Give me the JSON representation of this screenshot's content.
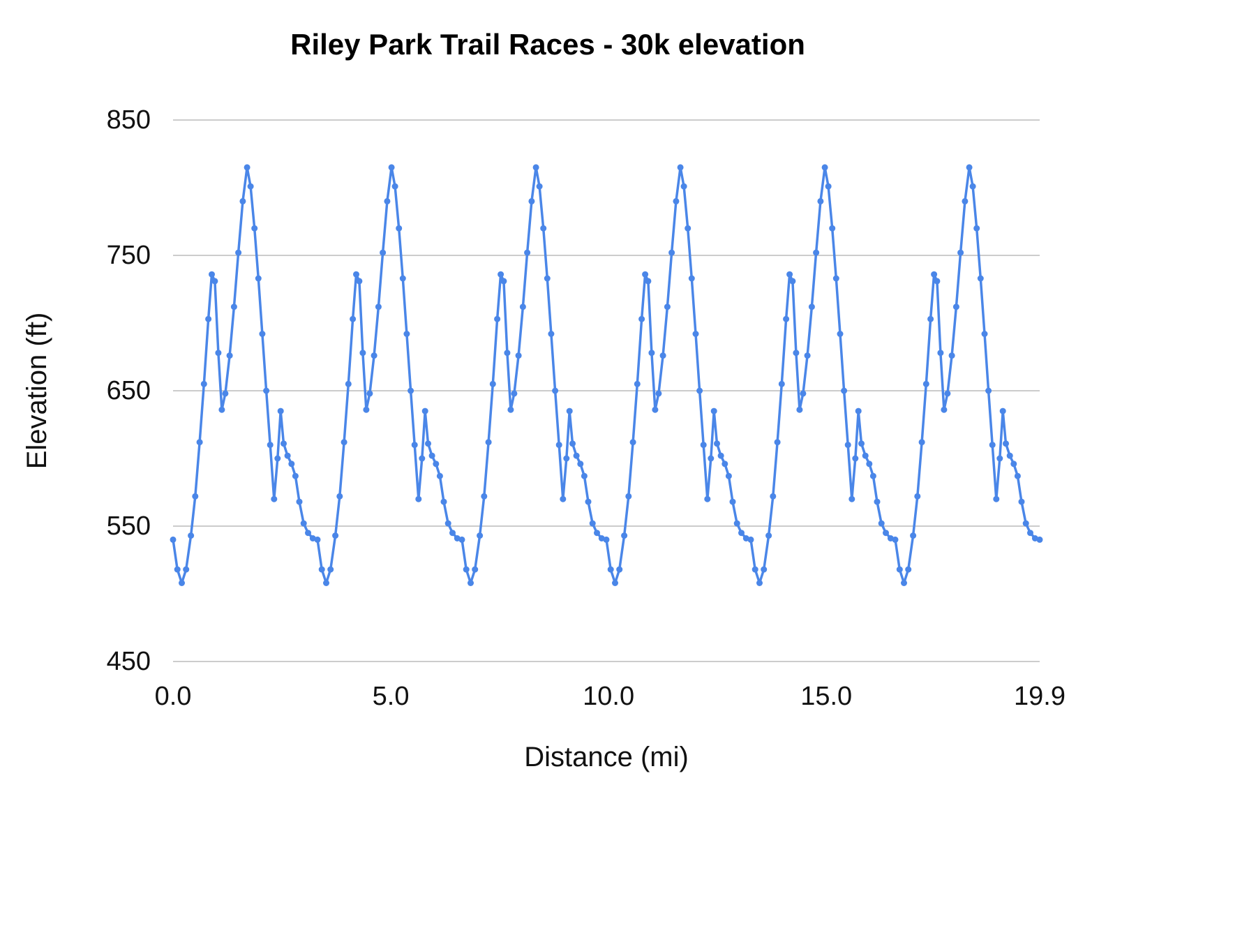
{
  "chart": {
    "title": "Riley Park Trail Races - 30k elevation",
    "colors": {
      "line": "#4a86e8",
      "marker": "#4a86e8",
      "grid": "#cccccc",
      "text": "#111111",
      "title": "#000000",
      "background": "#ffffff"
    }
  },
  "chart_data": {
    "type": "line",
    "title": "Riley Park Trail Races - 30k elevation",
    "xlabel": "Distance (mi)",
    "ylabel": "Elevation (ft)",
    "xlim": [
      0,
      19.9
    ],
    "ylim": [
      450,
      850
    ],
    "grid": "horizontal",
    "legend": "none",
    "markers": true,
    "y_ticks": [
      {
        "v": 450,
        "label": "450"
      },
      {
        "v": 550,
        "label": "550"
      },
      {
        "v": 650,
        "label": "650"
      },
      {
        "v": 750,
        "label": "750"
      },
      {
        "v": 850,
        "label": "850"
      }
    ],
    "x_ticks": [
      {
        "v": 0,
        "label": "0.0"
      },
      {
        "v": 5,
        "label": "5.0"
      },
      {
        "v": 10,
        "label": "10.0"
      },
      {
        "v": 15,
        "label": "15.0"
      },
      {
        "v": 19.9,
        "label": "19.9"
      }
    ],
    "laps": 6,
    "lap_length_mi": 3.3167,
    "lap_profile": {
      "offsets_mi": [
        0.0,
        0.1,
        0.2,
        0.3,
        0.41,
        0.51,
        0.61,
        0.71,
        0.81,
        0.89,
        0.96,
        1.04,
        1.12,
        1.2,
        1.3,
        1.4,
        1.5,
        1.6,
        1.7,
        1.78,
        1.87,
        1.96,
        2.05,
        2.14,
        2.23,
        2.32,
        2.4,
        2.47,
        2.54,
        2.63,
        2.72,
        2.81,
        2.9,
        3.0,
        3.1,
        3.21
      ],
      "elevations_ft": [
        540,
        518,
        508,
        518,
        543,
        572,
        612,
        655,
        703,
        736,
        731,
        678,
        636,
        648,
        676,
        712,
        752,
        790,
        815,
        801,
        770,
        733,
        692,
        650,
        610,
        570,
        600,
        635,
        611,
        602,
        596,
        587,
        568,
        552,
        545,
        541
      ]
    },
    "closing_point": {
      "x": 19.9,
      "y": 540
    }
  }
}
